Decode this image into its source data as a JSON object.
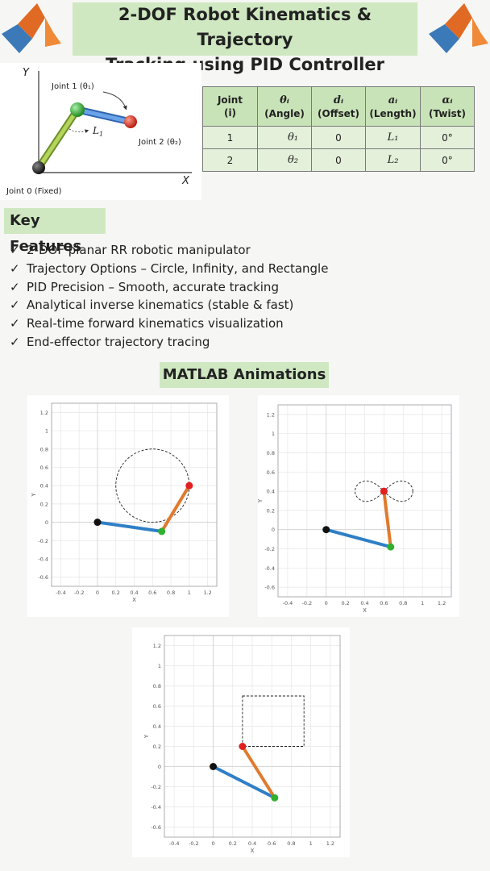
{
  "title": {
    "line1": "2-DOF Robot Kinematics & Trajectory",
    "line2": "Tracking using PID Controller"
  },
  "logos": {
    "left": "matlab-logo",
    "right": "matlab-logo"
  },
  "schematic": {
    "y_axis": "Y",
    "x_axis": "X",
    "joint1": "Joint 1 (θ₁)",
    "joint2": "Joint 2 (θ₂)",
    "joint0": "Joint 0 (Fixed)",
    "link_label_main": "L",
    "link_label_sub": "1"
  },
  "dh_table": {
    "headers": [
      {
        "sym": "",
        "line1": "Joint",
        "line2": "(i)"
      },
      {
        "sym": "θᵢ",
        "line1": "",
        "line2": "(Angle)"
      },
      {
        "sym": "dᵢ",
        "line1": "",
        "line2": "(Offset)"
      },
      {
        "sym": "aᵢ",
        "line1": "",
        "line2": "(Length)"
      },
      {
        "sym": "αᵢ",
        "line1": "",
        "line2": "(Twist)"
      }
    ],
    "rows": [
      [
        "1",
        "θ₁",
        "0",
        "L₁",
        "0°"
      ],
      [
        "2",
        "θ₂",
        "0",
        "L₂",
        "0°"
      ]
    ]
  },
  "key_features": {
    "heading": "Key Features",
    "check": "✓",
    "items": [
      "2-DOF planar RR robotic manipulator",
      "Trajectory Options – Circle, Infinity, and Rectangle",
      "PID Precision – Smooth, accurate tracking",
      "Analytical inverse kinematics (stable & fast)",
      "Real-time forward kinematics visualization",
      "End-effector trajectory tracing"
    ]
  },
  "animations": {
    "heading": "MATLAB Animations",
    "x_label": "X",
    "y_label": "Y",
    "x_ticks": [
      "-0.4",
      "-0.2",
      "0",
      "0.2",
      "0.4",
      "0.6",
      "0.8",
      "1",
      "1.2"
    ],
    "y_ticks": [
      "1.2",
      "1",
      "0.8",
      "0.6",
      "0.4",
      "0.2",
      "0",
      "-0.2",
      "-0.4",
      "-0.6"
    ],
    "colors": {
      "link1": "#2f7fc6",
      "link2": "#e07a2c",
      "base": "#111111",
      "elbow": "#2fb12f",
      "effector": "#e02020"
    },
    "plots": [
      {
        "trajectory": "circle",
        "base": [
          0,
          0
        ],
        "elbow": [
          0.7,
          -0.1
        ],
        "effector": [
          1.0,
          0.4
        ],
        "center": [
          0.6,
          0.4
        ],
        "radius": 0.4
      },
      {
        "trajectory": "infinity",
        "base": [
          0,
          0
        ],
        "elbow": [
          0.67,
          -0.18
        ],
        "effector": [
          0.6,
          0.4
        ],
        "center": [
          0.6,
          0.4
        ],
        "radius": 0.3
      },
      {
        "trajectory": "rectangle",
        "base": [
          0,
          0
        ],
        "elbow": [
          0.63,
          -0.31
        ],
        "effector": [
          0.3,
          0.2
        ],
        "rect": [
          0.3,
          0.2,
          0.93,
          0.7
        ]
      }
    ]
  }
}
